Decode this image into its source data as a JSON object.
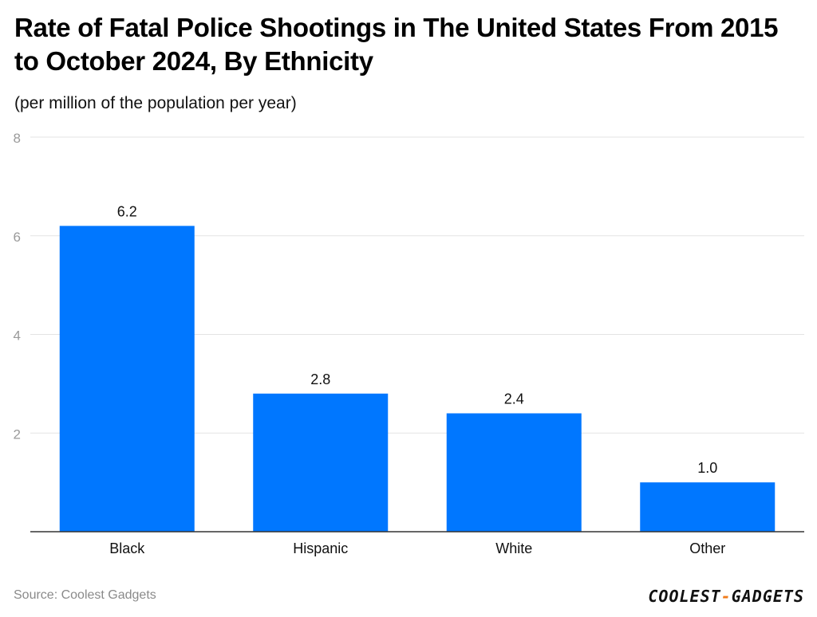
{
  "title": "Rate of Fatal Police Shootings in The United States From 2015 to October 2024, By Ethnicity",
  "subtitle": "(per million of the population per year)",
  "source": "Source: Coolest Gadgets",
  "brand": {
    "part1": "COOLEST",
    "sep": "-",
    "part2": "GADGETS"
  },
  "colors": {
    "bar": "#0077ff",
    "grid": "#e3e3e3",
    "axis": "#333333",
    "tick": "#9a9a9a",
    "brand_accent": "#f07b1a"
  },
  "chart_data": {
    "type": "bar",
    "title": "Rate of Fatal Police Shootings in The United States From 2015 to October 2024, By Ethnicity",
    "ylabel": "",
    "xlabel": "",
    "categories": [
      "Black",
      "Hispanic",
      "White",
      "Other"
    ],
    "values": [
      6.2,
      2.8,
      2.4,
      1.0
    ],
    "value_labels": [
      "6.2",
      "2.8",
      "2.4",
      "1.0"
    ],
    "ylim": [
      0,
      8
    ],
    "yticks": [
      2,
      4,
      6,
      8
    ],
    "grid": true
  }
}
